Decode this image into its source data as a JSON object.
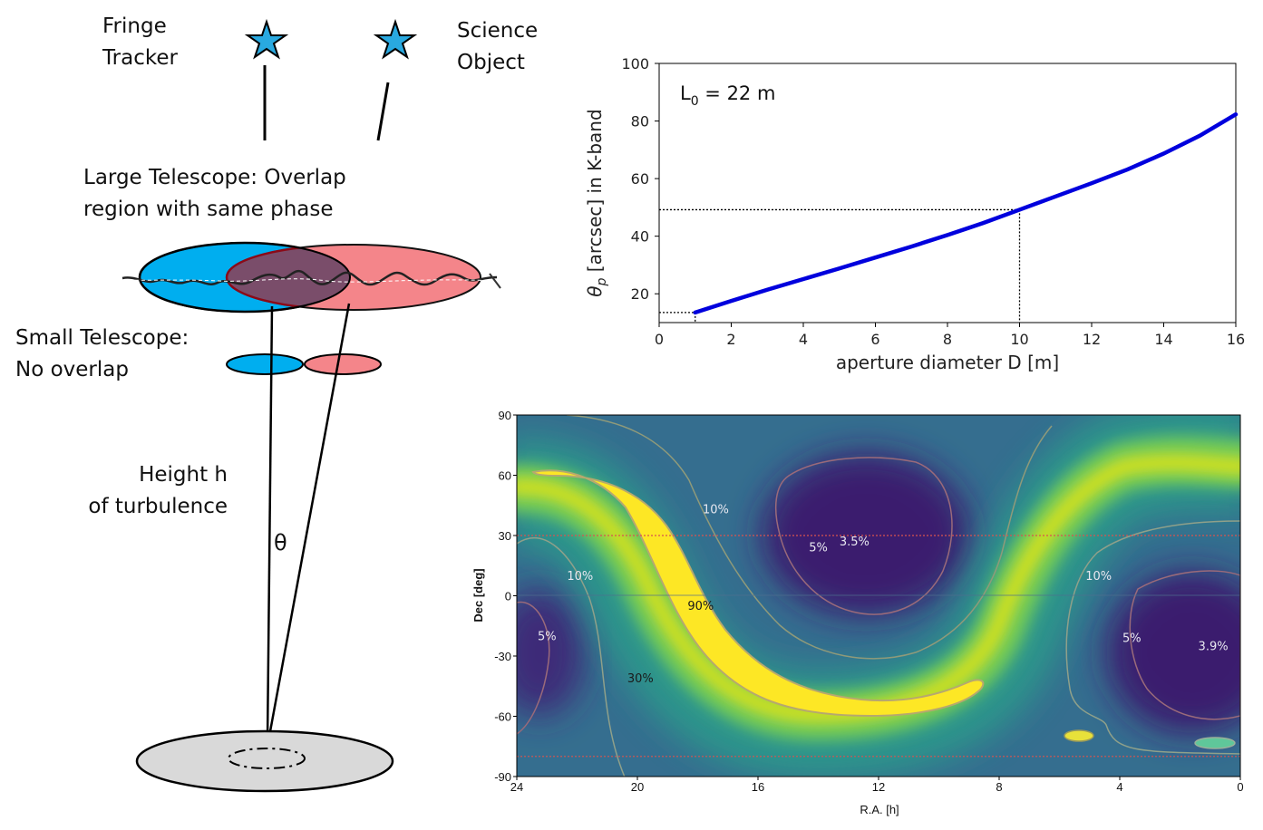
{
  "diagram": {
    "fringe_tracker_label": "Fringe\nTracker",
    "science_object_label": "Science\nObject",
    "large_telescope_label": "Large Telescope: Overlap\nregion with same phase",
    "small_telescope_label": "Small Telescope:\nNo overlap",
    "height_label": "Height h\nof turbulence",
    "theta_label": "θ",
    "colors": {
      "blue": "#00aeef",
      "red": "#f4858a",
      "overlap": "#7a4d6a",
      "ground": "#d9d9d9"
    }
  },
  "chart_data": [
    {
      "type": "line",
      "title": "",
      "annotation": "L0 = 22 m",
      "annotation_base": "L",
      "annotation_sub": "0",
      "annotation_rest": " = 22 m",
      "xlabel": "aperture diameter D [m]",
      "ylabel": "θp [arcsec] in K-band",
      "ylabel_greek": "θ",
      "ylabel_sub": "p",
      "ylabel_rest": " [arcsec] in K-band",
      "xlim": [
        0,
        16
      ],
      "ylim": [
        10,
        100
      ],
      "xticks": [
        "0",
        "2",
        "4",
        "6",
        "8",
        "10",
        "12",
        "14",
        "16"
      ],
      "yticks": [
        "20",
        "40",
        "60",
        "80",
        "100"
      ],
      "series": [
        {
          "name": "theta_p",
          "color": "#0000dd",
          "x": [
            1,
            2,
            3,
            4,
            5,
            6,
            7,
            8,
            9,
            10,
            11,
            12,
            13,
            14,
            15,
            16
          ],
          "y": [
            13.5,
            17.5,
            21.4,
            25.1,
            28.8,
            32.6,
            36.4,
            40.4,
            44.6,
            49.2,
            53.8,
            58.4,
            63.2,
            68.7,
            74.9,
            82.3
          ]
        }
      ],
      "guides": [
        {
          "x": 10,
          "y": 49.2
        },
        {
          "x": 1,
          "y": 13.5
        }
      ]
    },
    {
      "type": "heatmap",
      "title": "",
      "xlabel": "R.A. [h]",
      "ylabel": "Dec [deg]",
      "xlim": [
        24,
        0
      ],
      "ylim": [
        -90,
        90
      ],
      "xticks": [
        "24",
        "20",
        "16",
        "12",
        "8",
        "4",
        "0"
      ],
      "yticks": [
        "90",
        "60",
        "30",
        "0",
        "-30",
        "-60",
        "-90"
      ],
      "reference_lines_dec": [
        30,
        -80
      ],
      "contour_labels": [
        {
          "text": "10%",
          "ra": 17.4,
          "dec": 41
        },
        {
          "text": "5%",
          "ra": 14.0,
          "dec": 22
        },
        {
          "text": "3.5%",
          "ra": 12.8,
          "dec": 25
        },
        {
          "text": "10%",
          "ra": 21.9,
          "dec": 8
        },
        {
          "text": "90%",
          "ra": 17.9,
          "dec": -7
        },
        {
          "text": "5%",
          "ra": 23.0,
          "dec": -22
        },
        {
          "text": "30%",
          "ra": 19.9,
          "dec": -43
        },
        {
          "text": "10%",
          "ra": 4.7,
          "dec": 8
        },
        {
          "text": "5%",
          "ra": 3.6,
          "dec": -23
        },
        {
          "text": "3.9%",
          "ra": 0.9,
          "dec": -27
        }
      ]
    }
  ]
}
